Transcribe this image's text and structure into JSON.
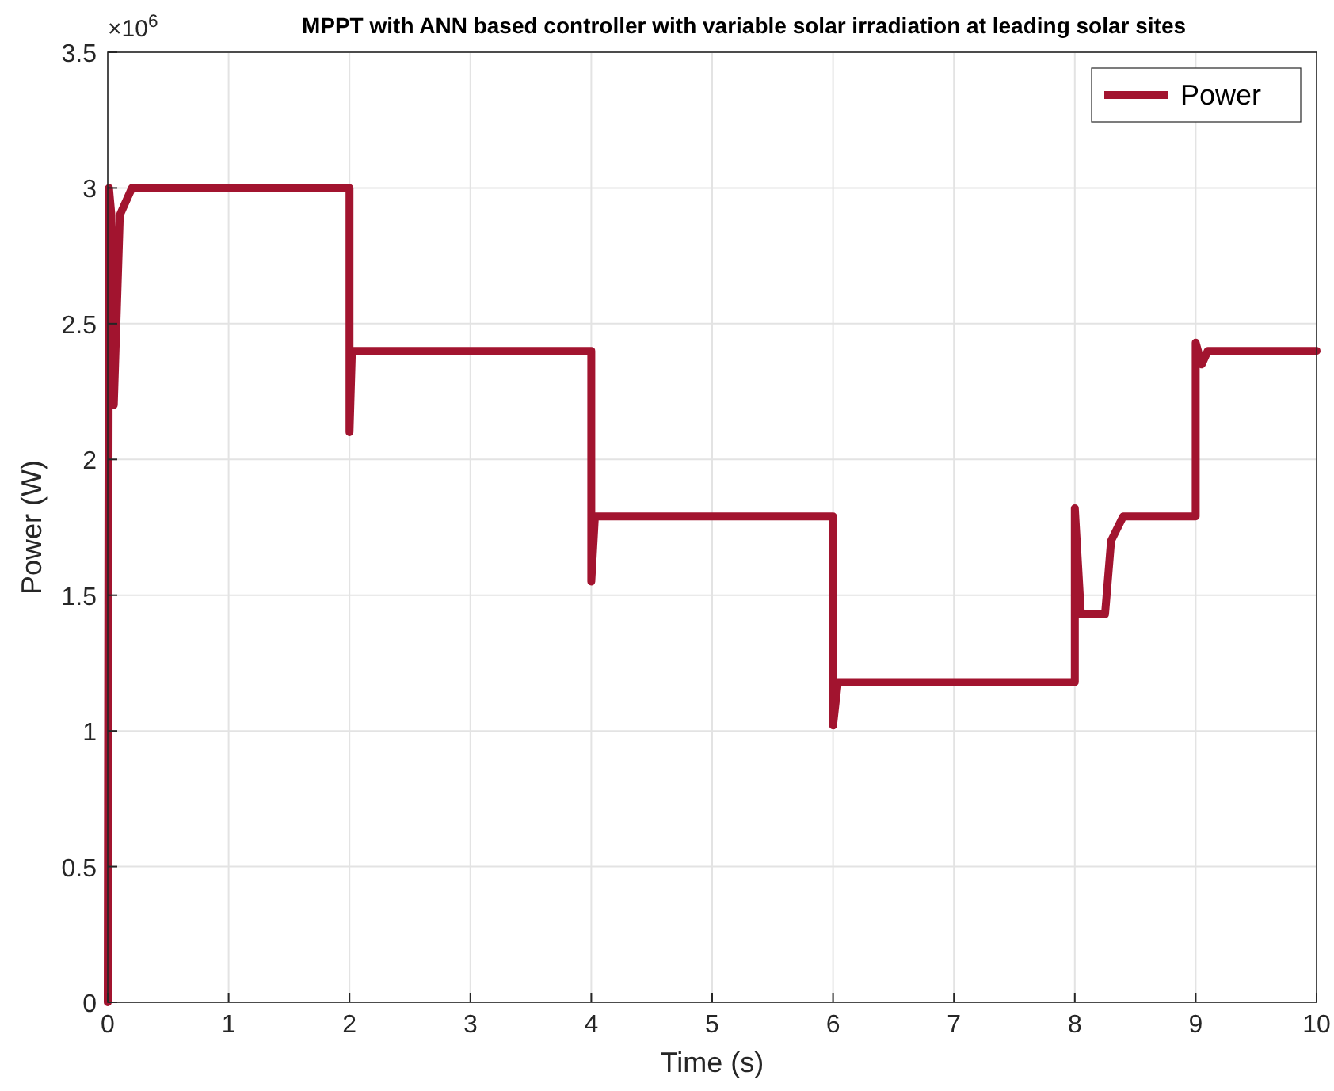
{
  "chart_data": {
    "type": "line",
    "title": "MPPT with ANN based controller with variable solar irradiation at leading solar sites",
    "xlabel": "Time (s)",
    "ylabel": "Power (W)",
    "annotations": [
      "×10$^{6}$"
    ],
    "xlim": [
      0,
      10
    ],
    "xticks": [
      0,
      1,
      2,
      3,
      4,
      5,
      6,
      7,
      8,
      9,
      10
    ],
    "ylim": [
      0,
      3.5
    ],
    "yticks": [
      0,
      0.5,
      1,
      1.5,
      2,
      2.5,
      3,
      3.5
    ],
    "grid": true,
    "legend": "top right",
    "line_style": "solid",
    "series": [
      {
        "name": "Power",
        "color": "#a2142f",
        "x": [
          0,
          0.01,
          0.03,
          0.05,
          0.1,
          0.2,
          2.0,
          2.0,
          2.02,
          4.0,
          4.0,
          4.03,
          6.0,
          6.0,
          6.04,
          8.0,
          8.0,
          8.05,
          8.25,
          8.3,
          8.4,
          9.0,
          9.0,
          9.05,
          9.1,
          10
        ],
        "values": [
          0,
          3.0,
          2.9,
          2.2,
          2.9,
          3.0,
          3.0,
          2.1,
          2.4,
          2.4,
          1.55,
          1.79,
          1.79,
          1.02,
          1.18,
          1.18,
          1.82,
          1.43,
          1.43,
          1.7,
          1.79,
          1.79,
          2.43,
          2.35,
          2.4,
          2.4
        ]
      }
    ]
  }
}
